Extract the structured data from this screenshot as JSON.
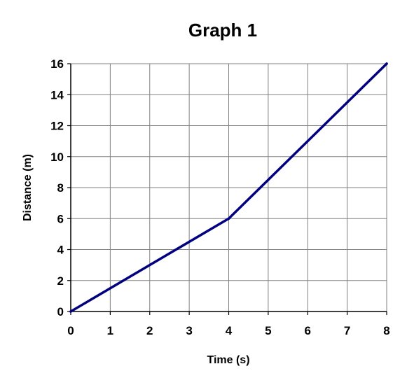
{
  "chart_data": {
    "type": "line",
    "title": "Graph 1",
    "xlabel": "Time (s)",
    "ylabel": "Distance (m)",
    "xlim": [
      0,
      8
    ],
    "ylim": [
      0,
      16
    ],
    "xticks": [
      0,
      1,
      2,
      3,
      4,
      5,
      6,
      7,
      8
    ],
    "yticks": [
      0,
      2,
      4,
      6,
      8,
      10,
      12,
      14,
      16
    ],
    "grid": true,
    "legend": "none",
    "series": [
      {
        "color": "#000080",
        "points": [
          {
            "x": 0,
            "y": 0
          },
          {
            "x": 4,
            "y": 6
          },
          {
            "x": 8,
            "y": 16
          }
        ]
      }
    ]
  }
}
